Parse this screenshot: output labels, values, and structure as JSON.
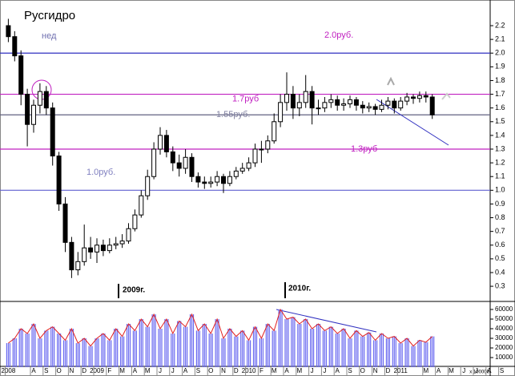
{
  "chart_data": [
    {
      "type": "candlestick",
      "title": "Русгидро",
      "subtitle": "нед",
      "categories": [
        "2008",
        null,
        null,
        null,
        "A",
        null,
        "S",
        null,
        "O",
        null,
        "N",
        null,
        "D",
        null,
        "2009",
        null,
        "F",
        null,
        "M",
        null,
        "A",
        null,
        "M",
        null,
        "J",
        null,
        "J",
        null,
        "A",
        null,
        "S",
        null,
        "O",
        null,
        "N",
        null,
        "D",
        null,
        "2010",
        null,
        "F",
        null,
        "M",
        null,
        "A",
        null,
        "M",
        null,
        "J",
        null,
        "J",
        null,
        "A",
        null,
        "S",
        null,
        "O",
        null,
        "N",
        null,
        "D",
        null,
        "2011",
        null,
        null,
        null,
        "M",
        null,
        "A",
        null,
        "M",
        null,
        "J",
        null,
        "J",
        null,
        "A",
        null,
        "S",
        null
      ],
      "open": [
        2.2,
        2.12,
        1.98,
        1.7,
        1.48,
        1.62,
        1.72,
        1.6,
        1.25,
        0.9,
        0.62,
        0.42,
        0.48,
        0.58,
        0.55,
        0.6,
        0.56,
        0.6,
        0.61,
        0.63,
        0.72,
        0.82,
        0.96,
        1.1,
        1.3,
        1.4,
        1.28,
        1.2,
        1.16,
        1.24,
        1.1,
        1.06,
        1.05,
        1.06,
        1.1,
        1.05,
        1.1,
        1.14,
        1.16,
        1.2,
        1.3,
        1.3,
        1.36,
        1.5,
        1.64,
        1.7,
        1.6,
        1.64,
        1.72,
        1.6,
        1.6,
        1.64,
        1.66,
        1.62,
        1.63,
        1.66,
        1.62,
        1.6,
        1.61,
        1.59,
        1.62,
        1.65,
        1.6,
        1.65,
        1.68,
        1.67,
        1.69,
        1.68,
        null,
        null,
        null,
        null,
        null,
        null,
        null,
        null,
        null,
        null,
        null,
        null
      ],
      "high": [
        2.25,
        2.16,
        2.02,
        1.74,
        1.66,
        1.78,
        1.76,
        1.64,
        1.28,
        0.95,
        0.66,
        0.55,
        0.75,
        0.66,
        0.65,
        0.64,
        0.65,
        0.66,
        0.68,
        0.76,
        0.86,
        1.0,
        1.15,
        1.35,
        1.46,
        1.44,
        1.32,
        1.26,
        1.3,
        1.27,
        1.13,
        1.1,
        1.1,
        1.14,
        1.12,
        1.14,
        1.17,
        1.2,
        1.24,
        1.34,
        1.36,
        1.4,
        1.56,
        1.7,
        1.86,
        1.76,
        1.7,
        1.84,
        1.76,
        1.66,
        1.68,
        1.7,
        1.69,
        1.67,
        1.69,
        1.68,
        1.65,
        1.64,
        1.63,
        1.66,
        1.68,
        1.67,
        1.68,
        1.71,
        1.7,
        1.72,
        1.72,
        1.7,
        null,
        null,
        null,
        null,
        null,
        null,
        null,
        null,
        null,
        null,
        null,
        null
      ],
      "low": [
        2.08,
        1.94,
        1.62,
        1.32,
        1.42,
        1.56,
        1.55,
        1.18,
        0.85,
        0.55,
        0.36,
        0.38,
        0.45,
        0.5,
        0.47,
        0.52,
        0.54,
        0.57,
        0.58,
        0.61,
        0.7,
        0.8,
        0.93,
        1.08,
        1.26,
        1.24,
        1.14,
        1.1,
        1.12,
        1.06,
        1.02,
        1.01,
        1.02,
        1.03,
        0.98,
        1.03,
        1.08,
        1.12,
        1.14,
        1.17,
        1.2,
        1.27,
        1.34,
        1.46,
        1.58,
        1.52,
        1.54,
        1.6,
        1.48,
        1.55,
        1.57,
        1.6,
        1.58,
        1.58,
        1.6,
        1.58,
        1.56,
        1.57,
        1.55,
        1.57,
        1.59,
        1.56,
        1.58,
        1.62,
        1.63,
        1.64,
        1.64,
        1.52,
        null,
        null,
        null,
        null,
        null,
        null,
        null,
        null,
        null,
        null,
        null,
        null
      ],
      "close": [
        2.12,
        1.98,
        1.7,
        1.48,
        1.62,
        1.72,
        1.6,
        1.25,
        0.9,
        0.62,
        0.42,
        0.48,
        0.58,
        0.55,
        0.6,
        0.56,
        0.6,
        0.61,
        0.63,
        0.72,
        0.82,
        0.96,
        1.1,
        1.3,
        1.4,
        1.28,
        1.2,
        1.16,
        1.24,
        1.1,
        1.06,
        1.05,
        1.06,
        1.1,
        1.05,
        1.1,
        1.14,
        1.16,
        1.2,
        1.3,
        1.3,
        1.36,
        1.5,
        1.64,
        1.7,
        1.6,
        1.64,
        1.72,
        1.6,
        1.6,
        1.64,
        1.66,
        1.62,
        1.63,
        1.66,
        1.62,
        1.6,
        1.61,
        1.59,
        1.62,
        1.65,
        1.6,
        1.65,
        1.68,
        1.67,
        1.69,
        1.68,
        1.55,
        null,
        null,
        null,
        null,
        null,
        null,
        null,
        null,
        null,
        null,
        null,
        null
      ],
      "color": "#000000",
      "ylim": [
        0.2,
        2.4
      ],
      "yticks": [
        0.3,
        0.4,
        0.5,
        0.6,
        0.7,
        0.8,
        0.9,
        {
          "value": 1,
          "label": "1.0"
        },
        1.1,
        1.2,
        1.3,
        1.4,
        1.5,
        1.6,
        1.7,
        1.8,
        1.9,
        {
          "value": 2,
          "label": "2.0"
        },
        2.1,
        2.2
      ],
      "levels": [
        {
          "value": 2.0,
          "label": "2.0руб.",
          "color": "#3030c0"
        },
        {
          "value": 1.7,
          "label": "1.7руб",
          "color": "#c020c0"
        },
        {
          "value": 1.55,
          "label": "1.55руб.",
          "color": "#606080"
        },
        {
          "value": 1.3,
          "label": "1.3руб",
          "color": "#c020c0"
        },
        {
          "value": 1.0,
          "label": "1.0руб.",
          "color": "#6060d0"
        }
      ],
      "year_markers": [
        "2009г.",
        "2010г."
      ]
    },
    {
      "type": "bar",
      "values": [
        25000,
        30000,
        40000,
        35000,
        45000,
        30000,
        38000,
        42000,
        35000,
        28000,
        40000,
        25000,
        30000,
        22000,
        30000,
        35000,
        28000,
        40000,
        32000,
        45000,
        38000,
        50000,
        42000,
        55000,
        40000,
        50000,
        35000,
        48000,
        42000,
        55000,
        38000,
        45000,
        35000,
        50000,
        30000,
        40000,
        32000,
        38000,
        28000,
        42000,
        30000,
        45000,
        38000,
        60000,
        50000,
        52000,
        45000,
        50000,
        40000,
        45000,
        38000,
        42000,
        35000,
        40000,
        30000,
        38000,
        32000,
        36000,
        28000,
        35000,
        30000,
        32000,
        25000,
        30000,
        22000,
        28000,
        26000,
        32000,
        null,
        null,
        null,
        null,
        null,
        null,
        null,
        null,
        null,
        null,
        null,
        null
      ],
      "color": "#6a6af0",
      "line_color": "#e02020",
      "ylim": [
        0,
        65000
      ],
      "yticks": [
        10000,
        20000,
        30000,
        40000,
        50000,
        60000
      ],
      "scale_note": "x 100000"
    }
  ]
}
